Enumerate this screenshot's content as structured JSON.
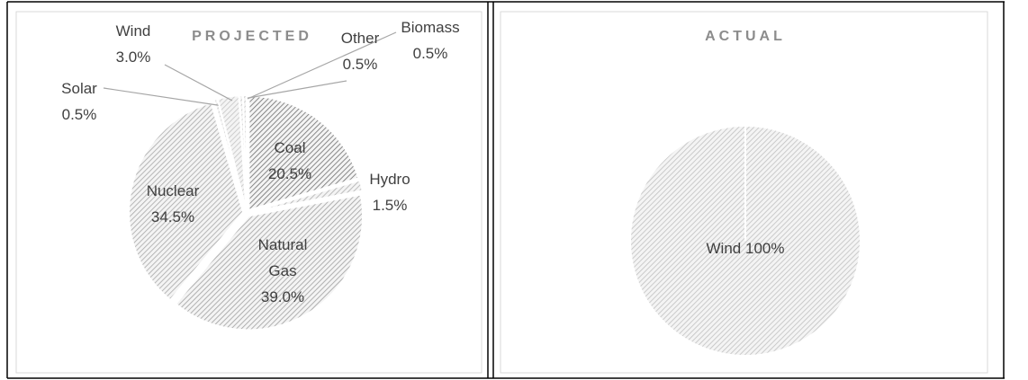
{
  "chart_data": [
    {
      "type": "pie",
      "title": "PROJECTED",
      "categories": [
        "Coal",
        "Hydro",
        "Natural Gas",
        "Nuclear",
        "Solar",
        "Wind",
        "Other",
        "Biomass"
      ],
      "values": [
        20.5,
        1.5,
        39.0,
        34.5,
        0.5,
        3.0,
        0.5,
        0.5
      ],
      "value_labels": [
        "20.5%",
        "1.5%",
        "39.0%",
        "34.5%",
        "0.5%",
        "3.0%",
        "0.5%",
        "0.5%"
      ],
      "colors": [
        "#6e6e6e",
        "#b0b0b0",
        "#a0a0a0",
        "#a8a8a8",
        "#c4c4c4",
        "#c4c4c4",
        "#c4c4c4",
        "#c4c4c4"
      ]
    },
    {
      "type": "pie",
      "title": "ACTUAL",
      "categories": [
        "Wind"
      ],
      "values": [
        100
      ],
      "value_labels": [
        "100%"
      ],
      "colors": [
        "#c0c0c0"
      ]
    }
  ]
}
